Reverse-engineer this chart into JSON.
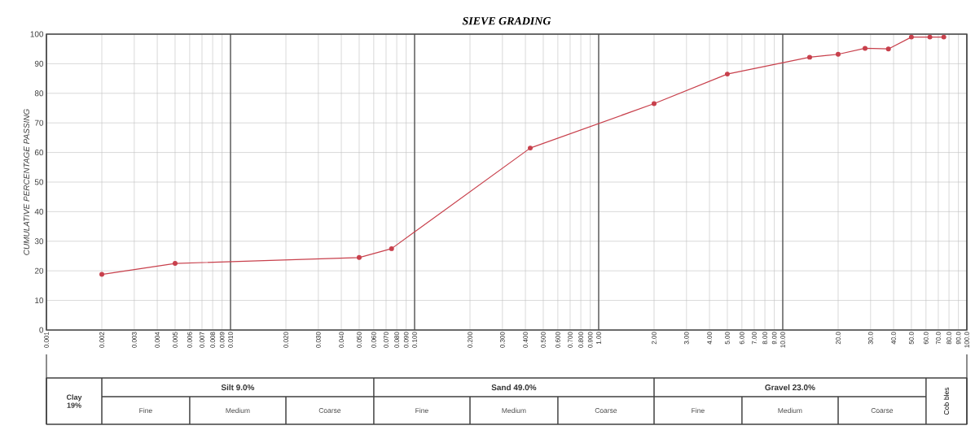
{
  "chart_data": {
    "type": "line",
    "title": "SIEVE GRADING",
    "ylabel": "CUMULATIVE PERCENTAGE PASSING",
    "log": "x",
    "grid": true,
    "marker": "circle",
    "line_style": "solid",
    "x": [
      0.002,
      0.005,
      0.05,
      0.075,
      0.425,
      2,
      5,
      14,
      20,
      28,
      37.5,
      50,
      63,
      75
    ],
    "series": [
      {
        "color": "#c8404c",
        "values": [
          18.8,
          22.5,
          24.5,
          27.5,
          61.5,
          76.5,
          86.5,
          92.2,
          93.2,
          95.2,
          95,
          99,
          99,
          99
        ]
      }
    ],
    "xlim": [
      0.001,
      100
    ],
    "xticks": [
      {
        "value": 0.001,
        "label": "0.001"
      },
      {
        "value": 0.002,
        "label": "0.002"
      },
      {
        "value": 0.003,
        "label": "0.003"
      },
      {
        "value": 0.004,
        "label": "0.004"
      },
      {
        "value": 0.005,
        "label": "0.005"
      },
      {
        "value": 0.006,
        "label": "0.006"
      },
      {
        "value": 0.007,
        "label": "0.007"
      },
      {
        "value": 0.008,
        "label": "0.008"
      },
      {
        "value": 0.009,
        "label": "0.009"
      },
      {
        "value": 0.01,
        "label": "0.010"
      },
      {
        "value": 0.02,
        "label": "0.020"
      },
      {
        "value": 0.03,
        "label": "0.030"
      },
      {
        "value": 0.04,
        "label": "0.040"
      },
      {
        "value": 0.05,
        "label": "0.050"
      },
      {
        "value": 0.06,
        "label": "0.060"
      },
      {
        "value": 0.07,
        "label": "0.070"
      },
      {
        "value": 0.08,
        "label": "0.080"
      },
      {
        "value": 0.09,
        "label": "0.090"
      },
      {
        "value": 0.1,
        "label": "0.100"
      },
      {
        "value": 0.2,
        "label": "0.200"
      },
      {
        "value": 0.3,
        "label": "0.300"
      },
      {
        "value": 0.4,
        "label": "0.400"
      },
      {
        "value": 0.5,
        "label": "0.500"
      },
      {
        "value": 0.6,
        "label": "0.600"
      },
      {
        "value": 0.7,
        "label": "0.700"
      },
      {
        "value": 0.8,
        "label": "0.800"
      },
      {
        "value": 0.9,
        "label": "0.900"
      },
      {
        "value": 1,
        "label": "1.00"
      },
      {
        "value": 2,
        "label": "2.00"
      },
      {
        "value": 3,
        "label": "3.00"
      },
      {
        "value": 4,
        "label": "4.00"
      },
      {
        "value": 5,
        "label": "5.00"
      },
      {
        "value": 6,
        "label": "6.00"
      },
      {
        "value": 7,
        "label": "7.00"
      },
      {
        "value": 8,
        "label": "8.00"
      },
      {
        "value": 9,
        "label": "9.00"
      },
      {
        "value": 10,
        "label": "10.00"
      },
      {
        "value": 20,
        "label": "20.0"
      },
      {
        "value": 30,
        "label": "30.0"
      },
      {
        "value": 40,
        "label": "40.0"
      },
      {
        "value": 50,
        "label": "50.0"
      },
      {
        "value": 60,
        "label": "60.0"
      },
      {
        "value": 70,
        "label": "70.0"
      },
      {
        "value": 80,
        "label": "80.0"
      },
      {
        "value": 90,
        "label": "90.0"
      },
      {
        "value": 100,
        "label": "100.0"
      }
    ],
    "ylim": [
      0,
      100
    ],
    "yticks": [
      0,
      10,
      20,
      30,
      40,
      50,
      60,
      70,
      80,
      90,
      100
    ],
    "annotations": [
      "Clay 19%",
      "Silt 9.0%",
      "Sand 49.0%",
      "Gravel 23.0%",
      "Cob bles",
      "Fine",
      "Medium",
      "Coarse",
      "Fine",
      "Medium",
      "Coarse",
      "Fine",
      "Medium",
      "Coarse"
    ]
  }
}
